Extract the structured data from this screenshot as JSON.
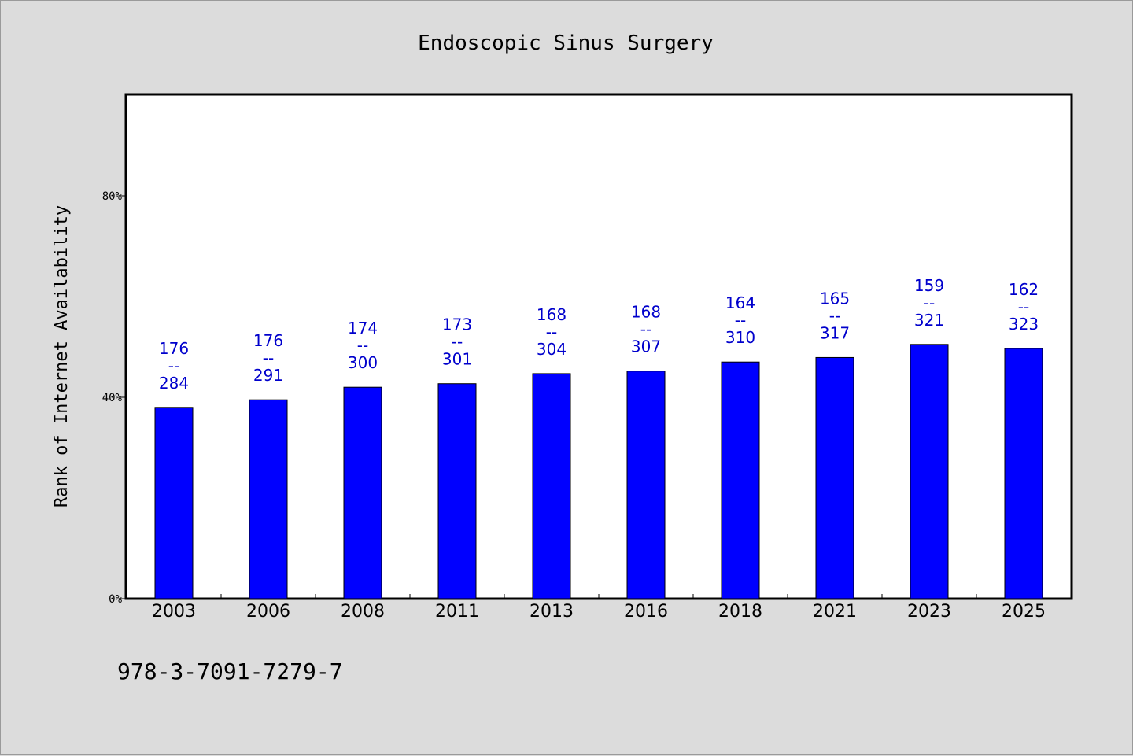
{
  "chart_data": {
    "type": "bar",
    "title": "Endoscopic Sinus Surgery",
    "ylabel": "Rank of Internet Availability",
    "xlabel": "",
    "ylim": [
      0,
      1
    ],
    "yticks": [
      {
        "value": 0,
        "label": "0%"
      },
      {
        "value": 0.4,
        "label": "40%"
      },
      {
        "value": 0.8,
        "label": "80%"
      }
    ],
    "categories": [
      "2003",
      "2006",
      "2008",
      "2011",
      "2013",
      "2016",
      "2018",
      "2021",
      "2023",
      "2025"
    ],
    "values": [
      0.38,
      0.395,
      0.42,
      0.427,
      0.447,
      0.452,
      0.47,
      0.479,
      0.505,
      0.497
    ],
    "data_labels": [
      {
        "top": "176",
        "sep": "--",
        "bottom": "284"
      },
      {
        "top": "176",
        "sep": "--",
        "bottom": "291"
      },
      {
        "top": "174",
        "sep": "--",
        "bottom": "300"
      },
      {
        "top": "173",
        "sep": "--",
        "bottom": "301"
      },
      {
        "top": "168",
        "sep": "--",
        "bottom": "304"
      },
      {
        "top": "168",
        "sep": "--",
        "bottom": "307"
      },
      {
        "top": "164",
        "sep": "--",
        "bottom": "310"
      },
      {
        "top": "165",
        "sep": "--",
        "bottom": "317"
      },
      {
        "top": "159",
        "sep": "--",
        "bottom": "321"
      },
      {
        "top": "162",
        "sep": "--",
        "bottom": "323"
      }
    ],
    "bar_color": "#0000ff",
    "label_color": "#0000cc",
    "grid": false,
    "legend": "none"
  },
  "footer": {
    "isbn": "978-3-7091-7279-7"
  }
}
